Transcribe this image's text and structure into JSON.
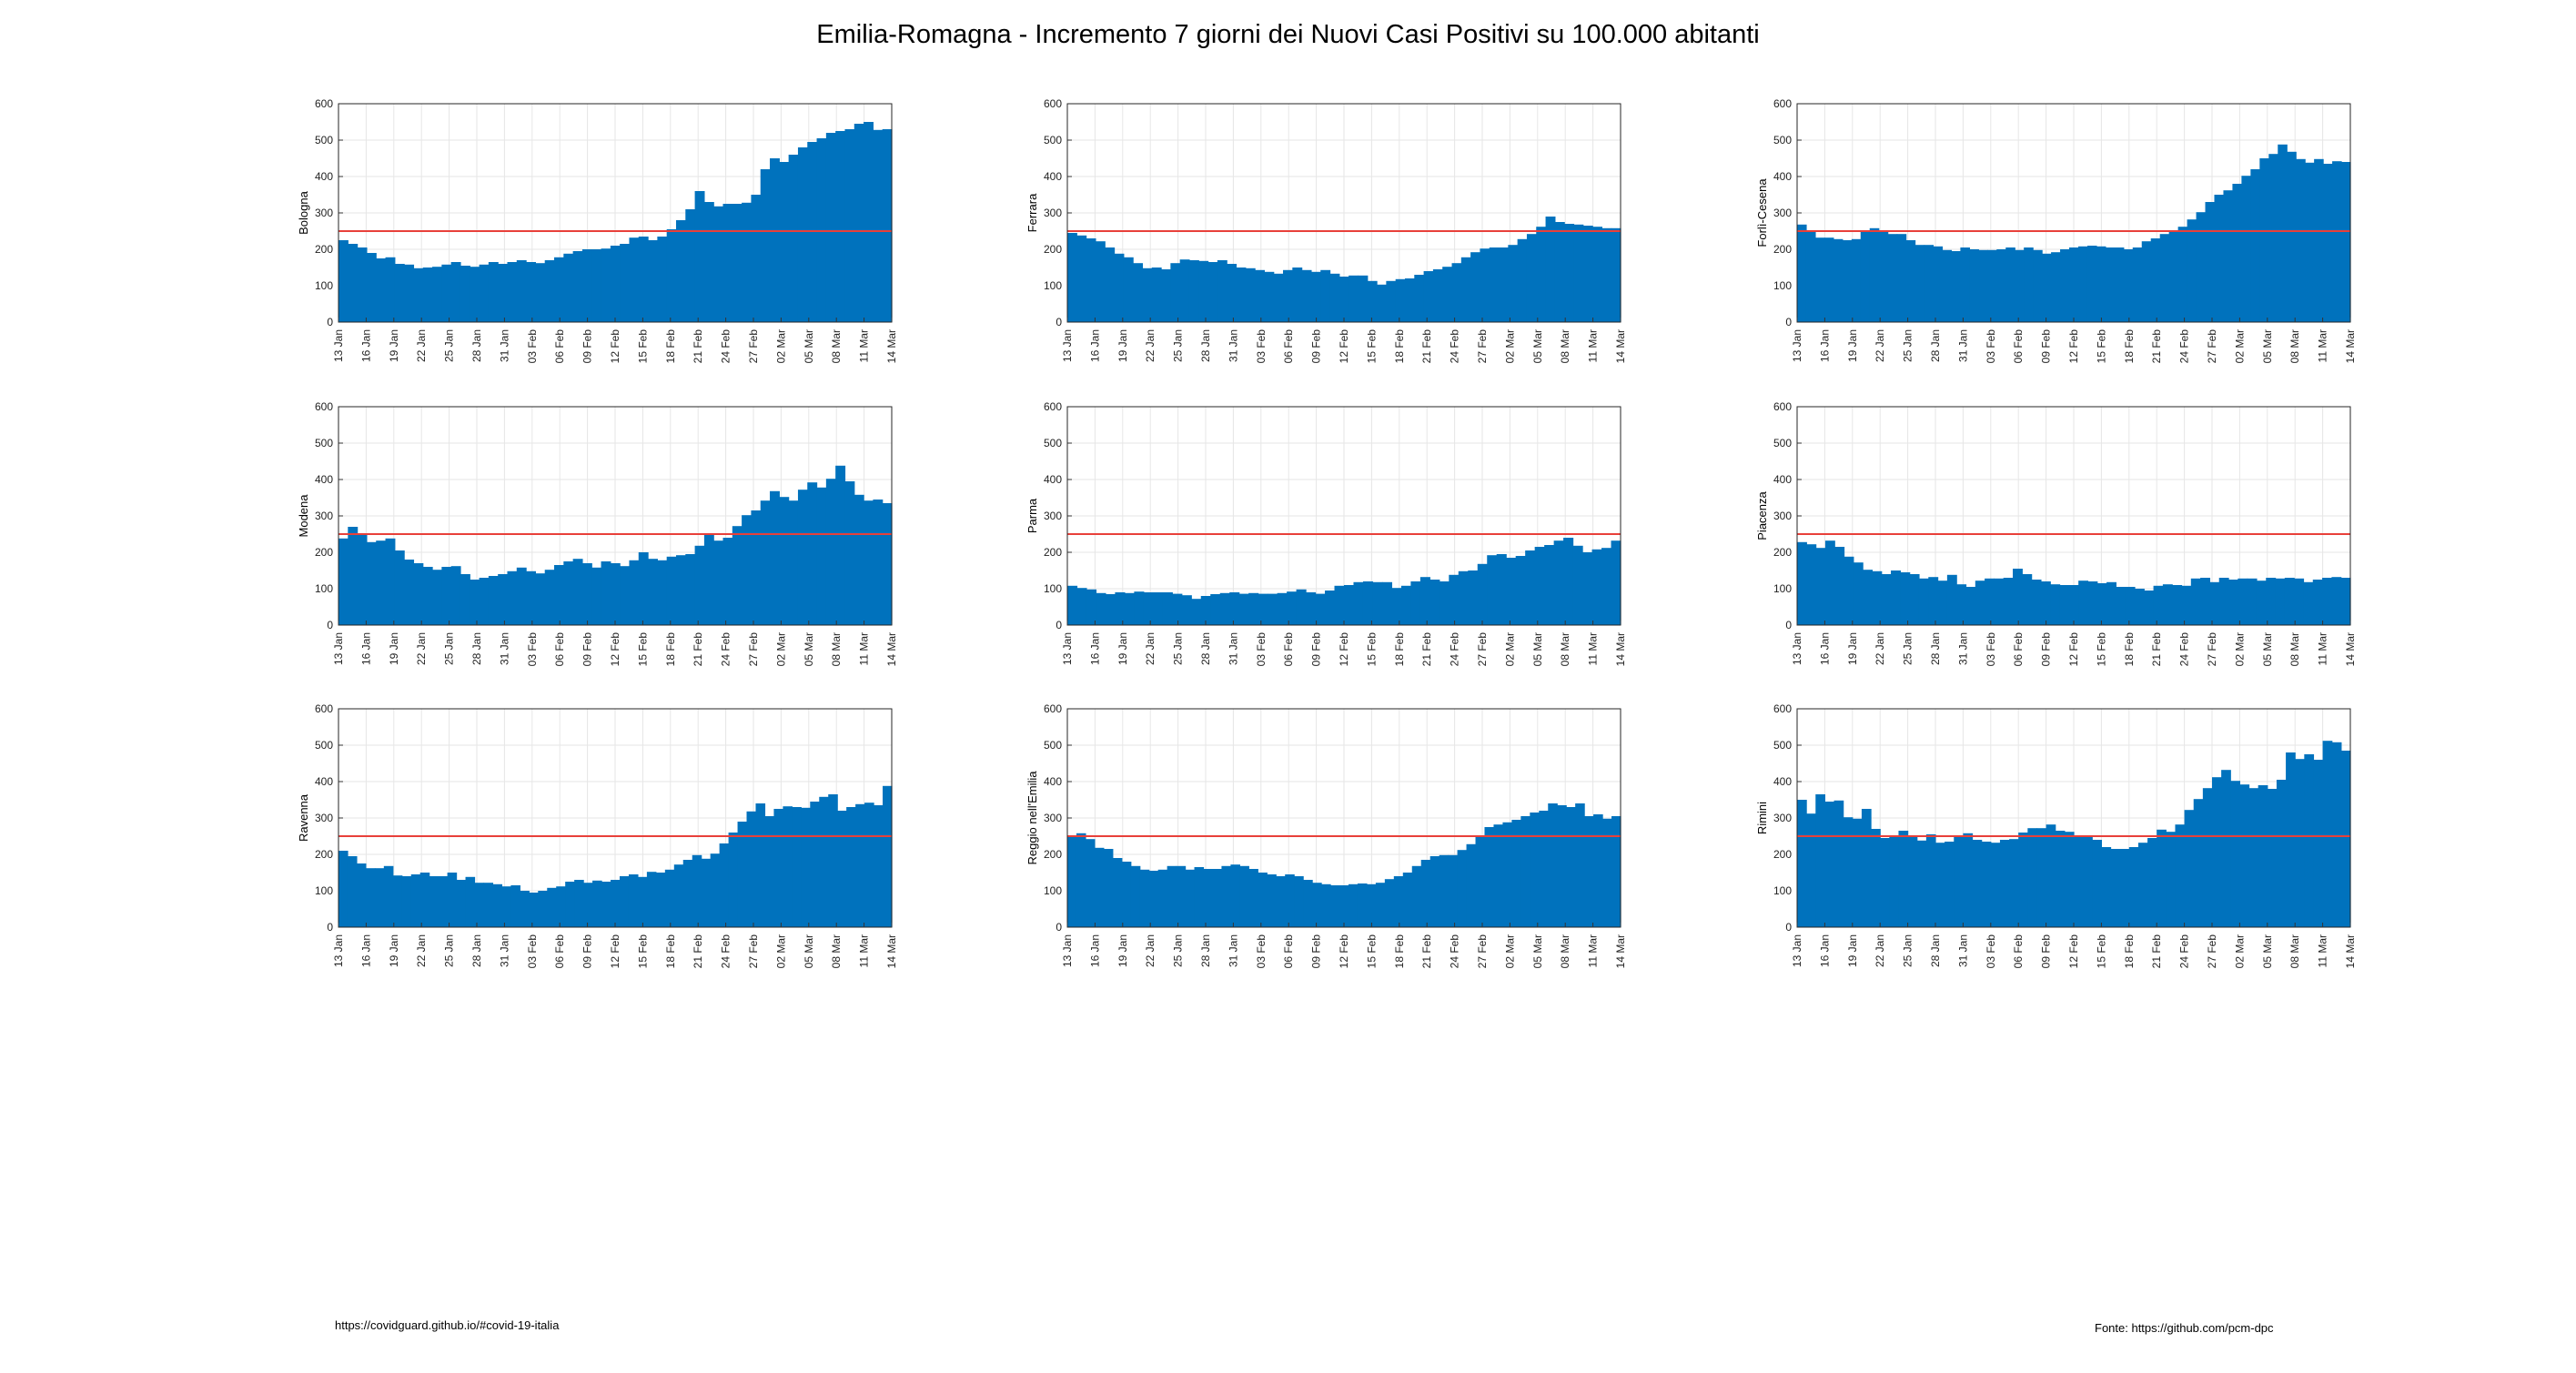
{
  "title": "Emilia-Romagna - Incremento 7 giorni dei Nuovi Casi Positivi su 100.000 abitanti",
  "footer": {
    "left": "https://covidguard.github.io/#covid-19-italia",
    "right": "Fonte: https://github.com/pcm-dpc"
  },
  "colors": {
    "bar": "#0072BD",
    "threshold": "#E8403A",
    "grid": "#E6E6E6"
  },
  "chart_data": [
    {
      "type": "bar",
      "ylabel": "Bologna",
      "ylim": [
        0,
        600
      ],
      "yticks": [
        0,
        100,
        200,
        300,
        400,
        500,
        600
      ],
      "threshold": 250,
      "x_ticks": [
        "13 Jan",
        "16 Jan",
        "19 Jan",
        "22 Jan",
        "25 Jan",
        "28 Jan",
        "31 Jan",
        "03 Feb",
        "06 Feb",
        "09 Feb",
        "12 Feb",
        "15 Feb",
        "18 Feb",
        "21 Feb",
        "24 Feb",
        "27 Feb",
        "02 Mar",
        "05 Mar",
        "08 Mar",
        "11 Mar",
        "14 Mar"
      ],
      "values": [
        225,
        215,
        205,
        190,
        175,
        178,
        160,
        158,
        148,
        150,
        152,
        158,
        165,
        155,
        152,
        158,
        165,
        160,
        165,
        170,
        165,
        162,
        170,
        178,
        188,
        195,
        200,
        200,
        202,
        210,
        215,
        232,
        235,
        225,
        235,
        255,
        280,
        310,
        360,
        330,
        318,
        325,
        325,
        328,
        350,
        420,
        450,
        440,
        460,
        480,
        495,
        505,
        520,
        525,
        530,
        545,
        550,
        528,
        530
      ]
    },
    {
      "type": "bar",
      "ylabel": "Ferrara",
      "ylim": [
        0,
        600
      ],
      "yticks": [
        0,
        100,
        200,
        300,
        400,
        500,
        600
      ],
      "threshold": 250,
      "x_ticks": [
        "13 Jan",
        "16 Jan",
        "19 Jan",
        "22 Jan",
        "25 Jan",
        "28 Jan",
        "31 Jan",
        "03 Feb",
        "06 Feb",
        "09 Feb",
        "12 Feb",
        "15 Feb",
        "18 Feb",
        "21 Feb",
        "24 Feb",
        "27 Feb",
        "02 Mar",
        "05 Mar",
        "08 Mar",
        "11 Mar",
        "14 Mar"
      ],
      "values": [
        245,
        238,
        230,
        222,
        205,
        188,
        178,
        162,
        148,
        150,
        145,
        162,
        172,
        170,
        168,
        165,
        170,
        160,
        150,
        148,
        143,
        138,
        133,
        143,
        150,
        143,
        138,
        143,
        133,
        125,
        128,
        128,
        113,
        103,
        113,
        118,
        120,
        130,
        140,
        145,
        152,
        162,
        178,
        192,
        202,
        205,
        205,
        212,
        228,
        242,
        262,
        290,
        275,
        270,
        268,
        265,
        262,
        258,
        258
      ]
    },
    {
      "type": "bar",
      "ylabel": "Forlì-Cesena",
      "ylim": [
        0,
        600
      ],
      "yticks": [
        0,
        100,
        200,
        300,
        400,
        500,
        600
      ],
      "threshold": 250,
      "x_ticks": [
        "13 Jan",
        "16 Jan",
        "19 Jan",
        "22 Jan",
        "25 Jan",
        "28 Jan",
        "31 Jan",
        "03 Feb",
        "06 Feb",
        "09 Feb",
        "12 Feb",
        "15 Feb",
        "18 Feb",
        "21 Feb",
        "24 Feb",
        "27 Feb",
        "02 Mar",
        "05 Mar",
        "08 Mar",
        "11 Mar",
        "14 Mar"
      ],
      "values": [
        268,
        248,
        232,
        232,
        228,
        225,
        228,
        250,
        258,
        252,
        242,
        242,
        225,
        212,
        212,
        208,
        198,
        195,
        205,
        200,
        198,
        198,
        200,
        205,
        198,
        205,
        198,
        188,
        192,
        200,
        205,
        208,
        210,
        208,
        205,
        205,
        200,
        205,
        222,
        230,
        242,
        248,
        262,
        282,
        302,
        330,
        350,
        362,
        380,
        402,
        420,
        450,
        462,
        488,
        468,
        448,
        438,
        448,
        435,
        442,
        440
      ]
    },
    {
      "type": "bar",
      "ylabel": "Modena",
      "ylim": [
        0,
        600
      ],
      "yticks": [
        0,
        100,
        200,
        300,
        400,
        500,
        600
      ],
      "threshold": 250,
      "x_ticks": [
        "13 Jan",
        "16 Jan",
        "19 Jan",
        "22 Jan",
        "25 Jan",
        "28 Jan",
        "31 Jan",
        "03 Feb",
        "06 Feb",
        "09 Feb",
        "12 Feb",
        "15 Feb",
        "18 Feb",
        "21 Feb",
        "24 Feb",
        "27 Feb",
        "02 Mar",
        "05 Mar",
        "08 Mar",
        "11 Mar",
        "14 Mar"
      ],
      "values": [
        238,
        270,
        252,
        228,
        232,
        238,
        205,
        180,
        170,
        160,
        152,
        160,
        162,
        140,
        125,
        130,
        135,
        140,
        148,
        158,
        148,
        142,
        152,
        165,
        175,
        182,
        170,
        158,
        175,
        170,
        162,
        178,
        200,
        182,
        178,
        188,
        192,
        195,
        218,
        250,
        232,
        240,
        272,
        302,
        315,
        342,
        368,
        352,
        342,
        372,
        392,
        378,
        402,
        438,
        395,
        358,
        342,
        345,
        335
      ]
    },
    {
      "type": "bar",
      "ylabel": "Parma",
      "ylim": [
        0,
        600
      ],
      "yticks": [
        0,
        100,
        200,
        300,
        400,
        500,
        600
      ],
      "threshold": 250,
      "x_ticks": [
        "13 Jan",
        "16 Jan",
        "19 Jan",
        "22 Jan",
        "25 Jan",
        "28 Jan",
        "31 Jan",
        "03 Feb",
        "06 Feb",
        "09 Feb",
        "12 Feb",
        "15 Feb",
        "18 Feb",
        "21 Feb",
        "24 Feb",
        "27 Feb",
        "02 Mar",
        "05 Mar",
        "08 Mar",
        "11 Mar",
        "14 Mar"
      ],
      "values": [
        108,
        102,
        98,
        88,
        85,
        90,
        88,
        92,
        90,
        90,
        90,
        86,
        82,
        72,
        80,
        85,
        88,
        90,
        86,
        88,
        86,
        86,
        88,
        92,
        98,
        90,
        86,
        95,
        108,
        110,
        118,
        120,
        118,
        118,
        102,
        108,
        120,
        132,
        125,
        120,
        138,
        148,
        150,
        168,
        192,
        195,
        185,
        190,
        205,
        215,
        220,
        232,
        240,
        218,
        200,
        208,
        212,
        232
      ]
    },
    {
      "type": "bar",
      "ylabel": "Piacenza",
      "ylim": [
        0,
        600
      ],
      "yticks": [
        0,
        100,
        200,
        300,
        400,
        500,
        600
      ],
      "threshold": 250,
      "x_ticks": [
        "13 Jan",
        "16 Jan",
        "19 Jan",
        "22 Jan",
        "25 Jan",
        "28 Jan",
        "31 Jan",
        "03 Feb",
        "06 Feb",
        "09 Feb",
        "12 Feb",
        "15 Feb",
        "18 Feb",
        "21 Feb",
        "24 Feb",
        "27 Feb",
        "02 Mar",
        "05 Mar",
        "08 Mar",
        "11 Mar",
        "14 Mar"
      ],
      "values": [
        228,
        222,
        212,
        232,
        215,
        188,
        172,
        152,
        148,
        140,
        150,
        145,
        140,
        128,
        132,
        122,
        138,
        112,
        105,
        122,
        128,
        128,
        130,
        155,
        140,
        125,
        120,
        112,
        110,
        110,
        122,
        120,
        115,
        118,
        105,
        105,
        100,
        95,
        108,
        112,
        110,
        108,
        128,
        130,
        118,
        130,
        125,
        128,
        128,
        122,
        130,
        128,
        130,
        128,
        118,
        125,
        130,
        132,
        130
      ]
    },
    {
      "type": "bar",
      "ylabel": "Ravenna",
      "ylim": [
        0,
        600
      ],
      "yticks": [
        0,
        100,
        200,
        300,
        400,
        500,
        600
      ],
      "threshold": 250,
      "x_ticks": [
        "13 Jan",
        "16 Jan",
        "19 Jan",
        "22 Jan",
        "25 Jan",
        "28 Jan",
        "31 Jan",
        "03 Feb",
        "06 Feb",
        "09 Feb",
        "12 Feb",
        "15 Feb",
        "18 Feb",
        "21 Feb",
        "24 Feb",
        "27 Feb",
        "02 Mar",
        "05 Mar",
        "08 Mar",
        "11 Mar",
        "14 Mar"
      ],
      "values": [
        210,
        195,
        175,
        162,
        162,
        168,
        142,
        140,
        145,
        150,
        140,
        140,
        150,
        130,
        138,
        122,
        122,
        118,
        112,
        115,
        100,
        95,
        100,
        108,
        112,
        125,
        130,
        122,
        128,
        125,
        130,
        140,
        145,
        138,
        152,
        150,
        158,
        172,
        185,
        198,
        188,
        202,
        230,
        260,
        290,
        318,
        340,
        305,
        325,
        332,
        330,
        328,
        345,
        358,
        365,
        320,
        330,
        338,
        342,
        335,
        388
      ]
    },
    {
      "type": "bar",
      "ylabel": "Reggio nell'Emilia",
      "ylim": [
        0,
        600
      ],
      "yticks": [
        0,
        100,
        200,
        300,
        400,
        500,
        600
      ],
      "threshold": 250,
      "x_ticks": [
        "13 Jan",
        "16 Jan",
        "19 Jan",
        "22 Jan",
        "25 Jan",
        "28 Jan",
        "31 Jan",
        "03 Feb",
        "06 Feb",
        "09 Feb",
        "12 Feb",
        "15 Feb",
        "18 Feb",
        "21 Feb",
        "24 Feb",
        "27 Feb",
        "02 Mar",
        "05 Mar",
        "08 Mar",
        "11 Mar",
        "14 Mar"
      ],
      "values": [
        250,
        258,
        242,
        218,
        215,
        190,
        180,
        168,
        158,
        155,
        158,
        168,
        168,
        158,
        165,
        160,
        160,
        168,
        172,
        168,
        160,
        150,
        145,
        140,
        145,
        140,
        130,
        122,
        118,
        115,
        115,
        118,
        120,
        118,
        122,
        132,
        140,
        150,
        168,
        185,
        195,
        198,
        198,
        212,
        228,
        250,
        275,
        282,
        288,
        295,
        305,
        315,
        320,
        340,
        335,
        330,
        340,
        305,
        310,
        298,
        305
      ]
    },
    {
      "type": "bar",
      "ylabel": "Rimini",
      "ylim": [
        0,
        600
      ],
      "yticks": [
        0,
        100,
        200,
        300,
        400,
        500,
        600
      ],
      "threshold": 250,
      "x_ticks": [
        "13 Jan",
        "16 Jan",
        "19 Jan",
        "22 Jan",
        "25 Jan",
        "28 Jan",
        "31 Jan",
        "03 Feb",
        "06 Feb",
        "09 Feb",
        "12 Feb",
        "15 Feb",
        "18 Feb",
        "21 Feb",
        "24 Feb",
        "27 Feb",
        "02 Mar",
        "05 Mar",
        "08 Mar",
        "11 Mar",
        "14 Mar"
      ],
      "values": [
        350,
        312,
        365,
        345,
        348,
        302,
        298,
        325,
        270,
        245,
        250,
        265,
        252,
        238,
        255,
        232,
        235,
        248,
        258,
        240,
        235,
        232,
        240,
        242,
        260,
        272,
        272,
        282,
        265,
        262,
        250,
        250,
        240,
        220,
        215,
        215,
        220,
        232,
        245,
        268,
        262,
        282,
        322,
        352,
        382,
        412,
        432,
        402,
        392,
        382,
        390,
        380,
        405,
        480,
        462,
        475,
        460,
        512,
        508,
        485
      ]
    }
  ]
}
